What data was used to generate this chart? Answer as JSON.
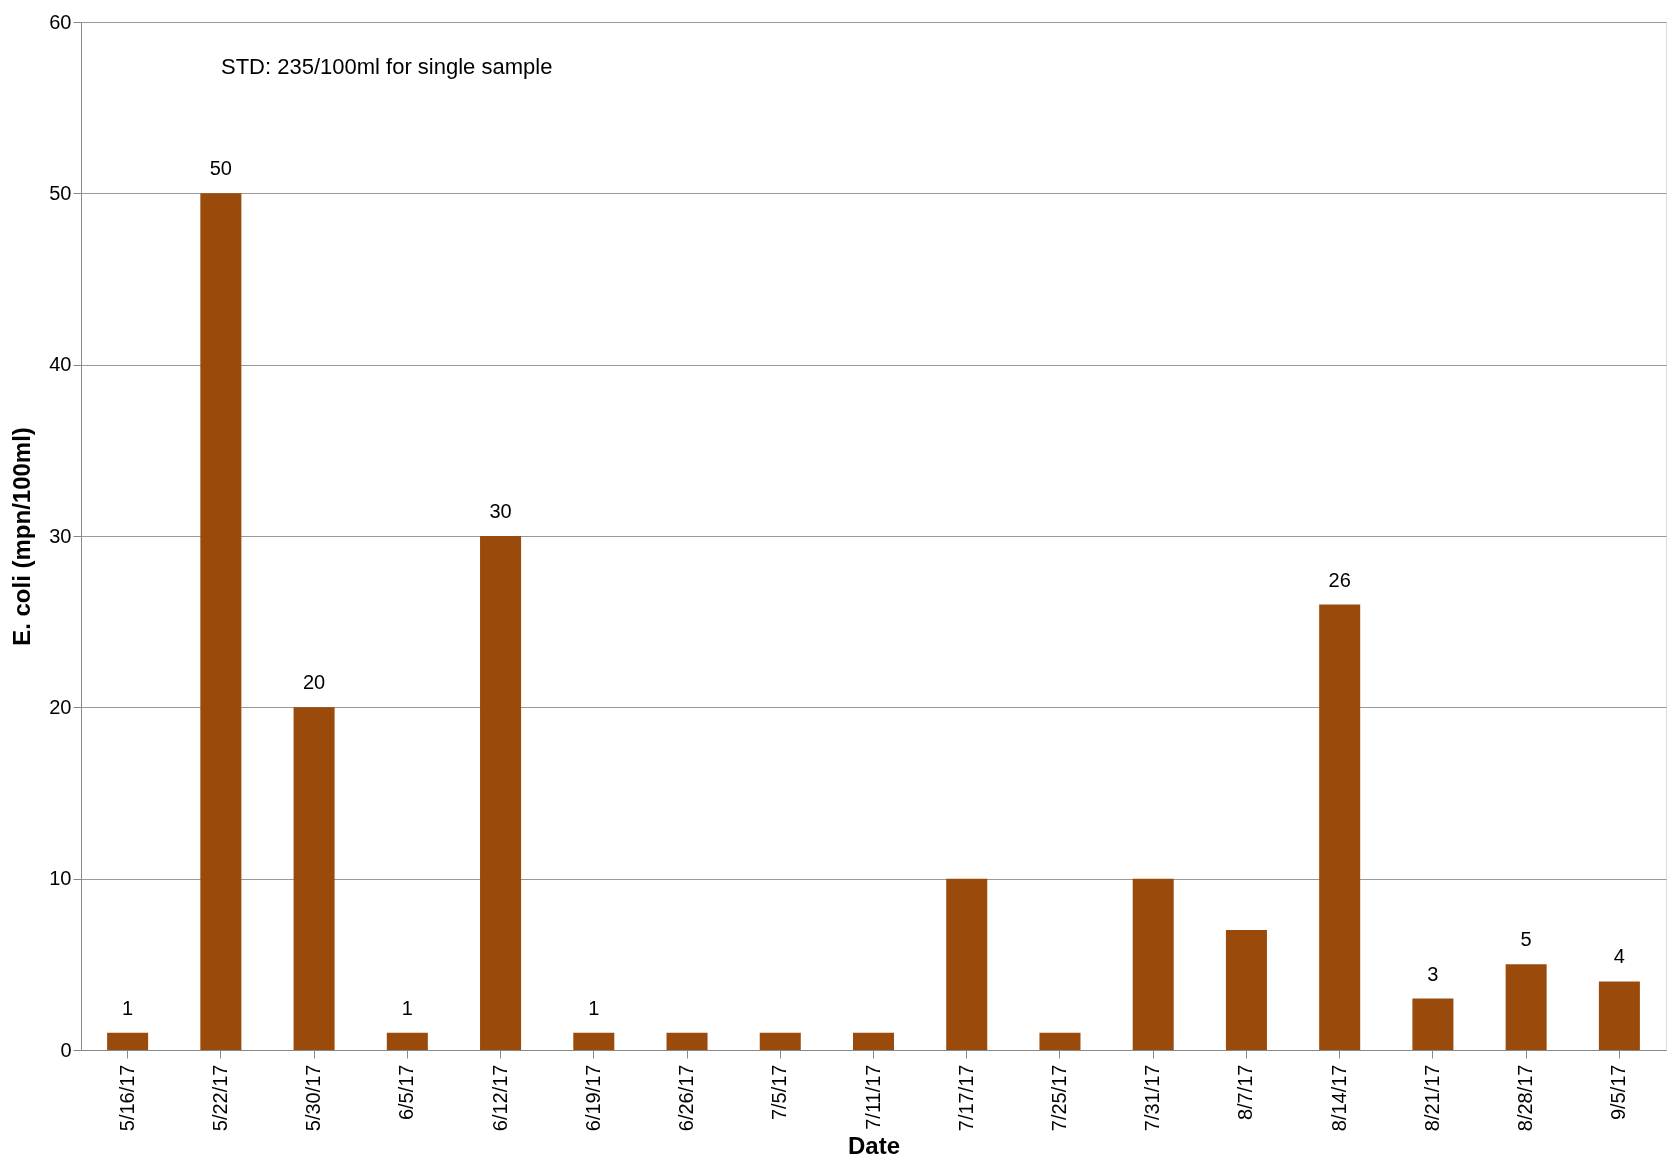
{
  "chart_data": {
    "type": "bar",
    "xlabel": "Date",
    "ylabel": "E. coli (mpn/100ml)",
    "categories": [
      "5/16/17",
      "5/22/17",
      "5/30/17",
      "6/5/17",
      "6/12/17",
      "6/19/17",
      "6/26/17",
      "7/5/17",
      "7/11/17",
      "7/17/17",
      "7/25/17",
      "7/31/17",
      "8/7/17",
      "8/14/17",
      "8/21/17",
      "8/28/17",
      "9/5/17"
    ],
    "values": [
      1,
      50,
      20,
      1,
      30,
      1,
      1,
      1,
      1,
      10,
      1,
      10,
      7,
      26,
      3,
      5,
      4
    ],
    "value_labels": [
      "1",
      "50",
      "20",
      "1",
      "30",
      "1",
      null,
      null,
      null,
      null,
      null,
      null,
      null,
      "26",
      "3",
      "5",
      "4"
    ],
    "color": "#9a4a0a",
    "ylim": [
      0,
      60
    ],
    "yticks": [
      0,
      10,
      20,
      30,
      40,
      50,
      60
    ],
    "grid": "y",
    "annotations": [
      "STD: 235/100ml for single sample"
    ]
  }
}
